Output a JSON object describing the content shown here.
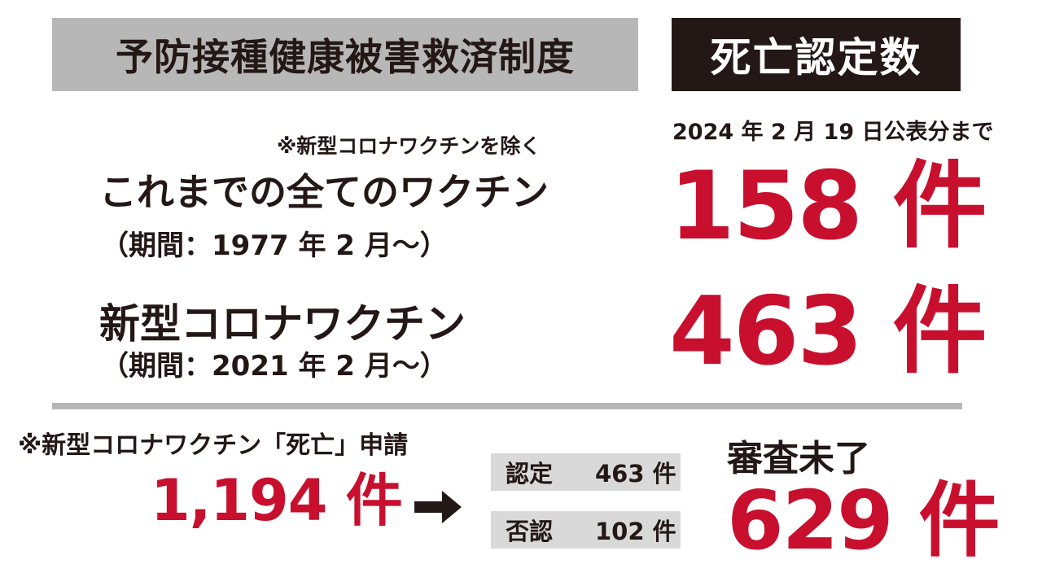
{
  "header": {
    "system_title": "予防接種健康被害救済制度",
    "badge_title": "死亡認定数"
  },
  "notes": {
    "as_of": "2024 年 2 月 19 日公表分まで",
    "exclusion": "※新型コロナワクチンを除く"
  },
  "rows": [
    {
      "label": "これまでの全てのワクチン",
      "period": "（期間：1977 年 2 月〜）",
      "count": "158 件"
    },
    {
      "label": "新型コロナワクチン",
      "period": "（期間：2021 年 2 月〜）",
      "count": "463 件"
    }
  ],
  "applications": {
    "label": "※新型コロナワクチン「死亡」申請",
    "total": "1,194 件",
    "arrow_icon": "right-arrow-icon",
    "breakdown": [
      {
        "key": "認定",
        "value": "463 件"
      },
      {
        "key": "否認",
        "value": "102 件"
      }
    ],
    "pending_label": "審査未了",
    "pending_count": "629 件"
  },
  "colors": {
    "accent_red": "#c8102e",
    "text_dark": "#231815",
    "panel_gray": "#b7b7b7",
    "pill_gray": "#d9d9d9",
    "badge_bg": "#231815"
  }
}
